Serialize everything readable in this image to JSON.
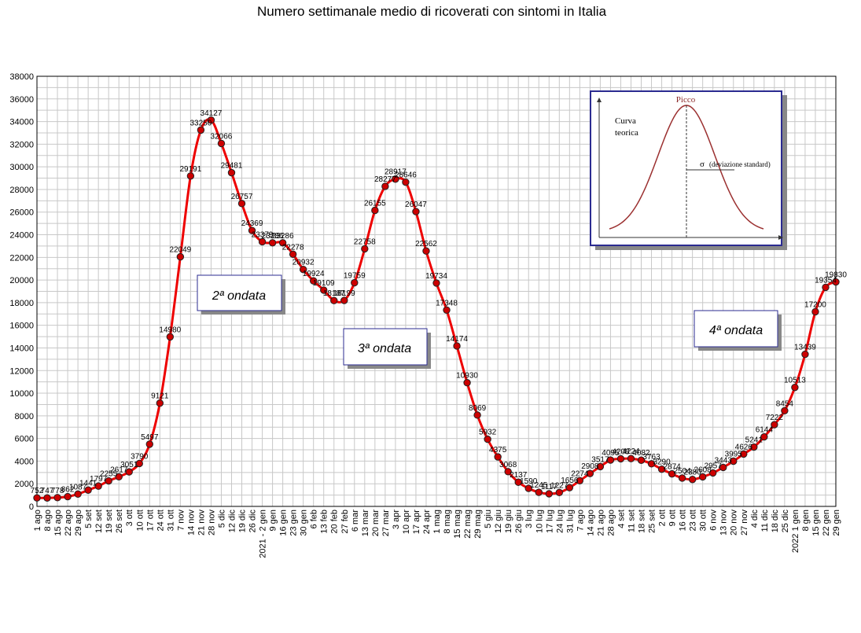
{
  "chart_data": {
    "type": "line",
    "title": "Numero settimanale medio di ricoverati con sintomi in Italia",
    "xlabel": "",
    "ylabel": "",
    "ylim": [
      0,
      38000
    ],
    "y_ticks": [
      "0",
      "2000",
      "4000",
      "6000",
      "8000",
      "10000",
      "12000",
      "14000",
      "16000",
      "18000",
      "20000",
      "22000",
      "24000",
      "26000",
      "28000",
      "30000",
      "32000",
      "34000",
      "36000",
      "38000"
    ],
    "grid": true,
    "categories": [
      "1 ago",
      "8 ago",
      "15 ago",
      "22 ago",
      "29 ago",
      "5 set",
      "12 set",
      "19 set",
      "26 set",
      "3 ott",
      "10 ott",
      "17 ott",
      "24 ott",
      "31 ott",
      "7 nov",
      "14 nov",
      "21 nov",
      "28 nov",
      "5 dic",
      "12 dic",
      "19 dic",
      "26 dic",
      "2021 - 2 gen",
      "9 gen",
      "16 gen",
      "23 gen",
      "30 gen",
      "6 feb",
      "13 feb",
      "20 feb",
      "27 feb",
      "6 mar",
      "13 mar",
      "20 mar",
      "27 mar",
      "3 apr",
      "10 apr",
      "17 apr",
      "24 apr",
      "1 mag",
      "8 mag",
      "15 mag",
      "22 mag",
      "29 mag",
      "5 giu",
      "12 giu",
      "19 giu",
      "26 giu",
      "3 lug",
      "10 lug",
      "17 lug",
      "24 lug",
      "31 lug",
      "7 ago",
      "14 ago",
      "21 ago",
      "28 ago",
      "4 set",
      "11 set",
      "18 set",
      "25 set",
      "2 ott",
      "9 ott",
      "16 ott",
      "23 ott",
      "30 ott",
      "6 nov",
      "13 nov",
      "20 nov",
      "27 nov",
      "4 dic",
      "11 dic",
      "18 dic",
      "25 dic",
      "2022 1 gen",
      "8 gen",
      "15 gen",
      "22 gen",
      "29 gen"
    ],
    "series": [
      {
        "color": "#ee0000",
        "marker_color": "#cc0000",
        "values": [
          752,
          747,
          778,
          862,
          1087,
          1441,
          1797,
          2255,
          2617,
          3051,
          3790,
          5497,
          9121,
          14980,
          22049,
          29191,
          33250,
          34127,
          32066,
          29481,
          26757,
          24369,
          23379,
          23286,
          23286,
          22278,
          20932,
          19924,
          19109,
          18187,
          18199,
          19759,
          22758,
          26155,
          28277,
          28917,
          28646,
          26047,
          22562,
          19734,
          17348,
          14174,
          10930,
          8069,
          5932,
          4375,
          3068,
          2137,
          1590,
          1245,
          1117,
          1227,
          1656,
          2274,
          2908,
          3517,
          4095,
          4208,
          4224,
          4082,
          3763,
          3290,
          2874,
          2504,
          2380,
          2608,
          2957,
          3443,
          3995,
          4626,
          5241,
          6144,
          7222,
          8454,
          10513,
          13439,
          17200,
          19354,
          19830
        ],
        "labels": [
          "752",
          "747",
          "778",
          "862",
          "1087",
          "1441",
          "1797",
          "2255",
          "2617",
          "3051",
          "3790",
          "5497",
          "9121",
          "14980",
          "22049",
          "29191",
          "33250",
          "34127",
          "32066",
          "29481",
          "26757",
          "24369",
          "23379",
          "23286",
          "23286",
          "22278",
          "20932",
          "19924",
          "19109",
          "18187",
          "18199",
          "19759",
          "22758",
          "26155",
          "28277",
          "28917",
          "28646",
          "26047",
          "22562",
          "19734",
          "17348",
          "14174",
          "10930",
          "8069",
          "5932",
          "4375",
          "3068",
          "2137",
          "1590",
          "1245",
          "1117",
          "1227",
          "1656",
          "2274",
          "2908",
          "3517",
          "4095",
          "4208",
          "4224",
          "4082",
          "3763",
          "3290",
          "2874",
          "2504",
          "2380",
          "2608",
          "2957",
          "3443",
          "3995",
          "4626",
          "5241",
          "6144",
          "7222",
          "8454",
          "10513",
          "13439",
          "17200",
          "19354",
          "19830"
        ]
      }
    ],
    "annotations": {
      "wave2": "2ª ondata",
      "wave3": "3ª ondata",
      "wave4": "4ª ondata"
    },
    "inset": {
      "peak_label": "Picco",
      "curve_label_1": "Curva",
      "curve_label_2": "teorica",
      "sigma_symbol": "σ",
      "sigma_label": "(deviazione standard)"
    }
  }
}
